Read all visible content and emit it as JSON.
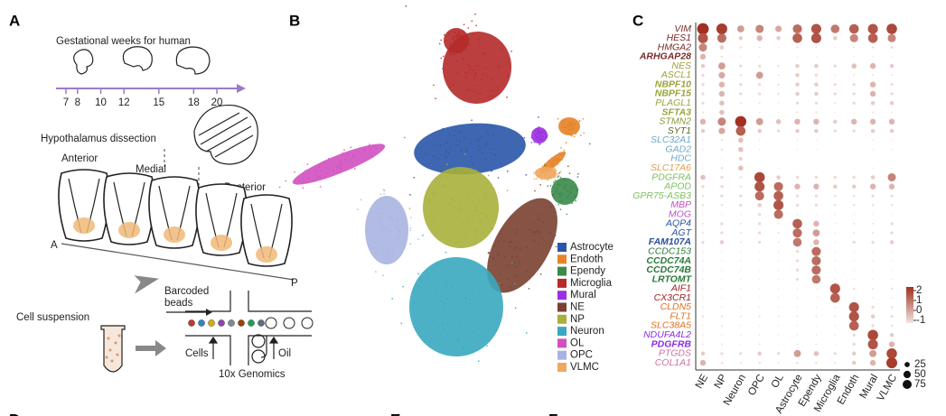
{
  "panels": {
    "a": {
      "label": "A",
      "timeline_title": "Gestational weeks for human",
      "weeks": [
        7,
        8,
        10,
        12,
        15,
        18,
        20
      ],
      "dissection_title": "Hypothalamus dissection",
      "regions": [
        "Anterior",
        "Medial",
        "Posterior"
      ],
      "axis_start": "A",
      "axis_end": "P",
      "beads": [
        "Barcoded",
        "beads"
      ],
      "suspension": "Cell suspension",
      "cells": "Cells",
      "oil": "Oil",
      "platform": "10x Genomics"
    },
    "b": {
      "label": "B",
      "clusters": [
        {
          "name": "Astrocyte",
          "color": "#2a56a8"
        },
        {
          "name": "Endoth",
          "color": "#e6832a"
        },
        {
          "name": "Ependy",
          "color": "#3a8a4a"
        },
        {
          "name": "Microglia",
          "color": "#b52a2a"
        },
        {
          "name": "Mural",
          "color": "#9a30e0"
        },
        {
          "name": "NE",
          "color": "#7a4030"
        },
        {
          "name": "NP",
          "color": "#a8b03a"
        },
        {
          "name": "Neuron",
          "color": "#3aa8c0"
        },
        {
          "name": "OL",
          "color": "#d050c0"
        },
        {
          "name": "OPC",
          "color": "#a8b4e0"
        },
        {
          "name": "VLMC",
          "color": "#f0a860"
        }
      ]
    },
    "c": {
      "label": "C",
      "cell_types": [
        "NE",
        "NP",
        "Neuron",
        "OPC",
        "OL",
        "Astrocyte",
        "Ependy",
        "Microglia",
        "Endoth",
        "Mural",
        "VLMC"
      ],
      "genes": [
        {
          "name": "VIM",
          "color": "#7a2a2a",
          "bold": false
        },
        {
          "name": "HES1",
          "color": "#7a2a2a",
          "bold": false
        },
        {
          "name": "HMGA2",
          "color": "#7a2a2a",
          "bold": false
        },
        {
          "name": "ARHGAP28",
          "color": "#7a2a2a",
          "bold": true
        },
        {
          "name": "NES",
          "color": "#9aa43a",
          "bold": false
        },
        {
          "name": "ASCL1",
          "color": "#9aa43a",
          "bold": false
        },
        {
          "name": "NBPF10",
          "color": "#9aa43a",
          "bold": true
        },
        {
          "name": "NBPF15",
          "color": "#9aa43a",
          "bold": true
        },
        {
          "name": "PLAGL1",
          "color": "#9aa43a",
          "bold": false
        },
        {
          "name": "SFTA3",
          "color": "#9aa43a",
          "bold": true
        },
        {
          "name": "STMN2",
          "color": "#8a9a3a",
          "bold": false
        },
        {
          "name": "SYT1",
          "color": "#5a6a2a",
          "bold": false
        },
        {
          "name": "SLC32A1",
          "color": "#6fa8c8",
          "bold": false
        },
        {
          "name": "GAD2",
          "color": "#6fa8c8",
          "bold": false
        },
        {
          "name": "HDC",
          "color": "#6fa8c8",
          "bold": false
        },
        {
          "name": "SLC17A6",
          "color": "#e0a050",
          "bold": false
        },
        {
          "name": "PDGFRA",
          "color": "#7cc060",
          "bold": false
        },
        {
          "name": "APOD",
          "color": "#7cc060",
          "bold": false
        },
        {
          "name": "GPR75-ASB3",
          "color": "#7cc060",
          "bold": false
        },
        {
          "name": "MBP",
          "color": "#c050c0",
          "bold": false
        },
        {
          "name": "MOG",
          "color": "#c050c0",
          "bold": false
        },
        {
          "name": "AQP4",
          "color": "#2a50a0",
          "bold": false
        },
        {
          "name": "AGT",
          "color": "#2a50a0",
          "bold": false
        },
        {
          "name": "FAM107A",
          "color": "#2a50a0",
          "bold": true
        },
        {
          "name": "CCDC153",
          "color": "#2a7a3a",
          "bold": false
        },
        {
          "name": "CCDC74A",
          "color": "#2a7a3a",
          "bold": true
        },
        {
          "name": "CCDC74B",
          "color": "#2a7a3a",
          "bold": true
        },
        {
          "name": "LRTOMT",
          "color": "#2a7a3a",
          "bold": true
        },
        {
          "name": "AIF1",
          "color": "#a02020",
          "bold": false
        },
        {
          "name": "CX3CR1",
          "color": "#a02020",
          "bold": false
        },
        {
          "name": "CLDN5",
          "color": "#e07020",
          "bold": false
        },
        {
          "name": "FLT1",
          "color": "#e07020",
          "bold": false
        },
        {
          "name": "SLC38A5",
          "color": "#e07020",
          "bold": false
        },
        {
          "name": "NDUFA4L2",
          "color": "#8a2be2",
          "bold": false
        },
        {
          "name": "PDGFRB",
          "color": "#8a2be2",
          "bold": true
        },
        {
          "name": "PTGDS",
          "color": "#d070a0",
          "bold": false
        },
        {
          "name": "COL1A1",
          "color": "#d070a0",
          "bold": false
        }
      ],
      "pct": [
        [
          80,
          70,
          30,
          40,
          25,
          50,
          60,
          45,
          55,
          60,
          65
        ],
        [
          60,
          50,
          10,
          20,
          10,
          55,
          60,
          10,
          40,
          55,
          40
        ],
        [
          40,
          10,
          3,
          2,
          1,
          3,
          2,
          1,
          2,
          3,
          4
        ],
        [
          20,
          3,
          1,
          1,
          0,
          1,
          1,
          0,
          1,
          1,
          1
        ],
        [
          10,
          30,
          5,
          5,
          3,
          10,
          10,
          5,
          15,
          20,
          10
        ],
        [
          5,
          25,
          3,
          30,
          2,
          10,
          5,
          1,
          2,
          2,
          2
        ],
        [
          5,
          20,
          5,
          5,
          3,
          10,
          10,
          5,
          5,
          20,
          5
        ],
        [
          5,
          20,
          5,
          5,
          3,
          10,
          10,
          5,
          5,
          20,
          5
        ],
        [
          5,
          15,
          2,
          2,
          1,
          5,
          5,
          2,
          5,
          10,
          10
        ],
        [
          2,
          15,
          1,
          1,
          1,
          2,
          2,
          1,
          1,
          2,
          2
        ],
        [
          20,
          40,
          75,
          30,
          15,
          20,
          20,
          10,
          20,
          20,
          20
        ],
        [
          10,
          25,
          55,
          10,
          5,
          10,
          10,
          5,
          5,
          10,
          10
        ],
        [
          1,
          3,
          15,
          1,
          0,
          1,
          1,
          0,
          0,
          1,
          1
        ],
        [
          1,
          3,
          15,
          1,
          0,
          1,
          1,
          0,
          0,
          1,
          1
        ],
        [
          0,
          1,
          8,
          0,
          0,
          0,
          0,
          0,
          0,
          0,
          0
        ],
        [
          1,
          3,
          15,
          1,
          1,
          1,
          1,
          0,
          1,
          1,
          1
        ],
        [
          15,
          5,
          3,
          65,
          10,
          5,
          5,
          5,
          5,
          10,
          40
        ],
        [
          5,
          5,
          3,
          60,
          50,
          20,
          20,
          10,
          10,
          20,
          20
        ],
        [
          3,
          5,
          5,
          50,
          55,
          5,
          5,
          3,
          3,
          5,
          5
        ],
        [
          3,
          3,
          5,
          10,
          60,
          5,
          5,
          3,
          3,
          3,
          3
        ],
        [
          1,
          1,
          1,
          5,
          50,
          1,
          1,
          1,
          1,
          1,
          1
        ],
        [
          2,
          5,
          2,
          5,
          2,
          55,
          20,
          1,
          2,
          2,
          5
        ],
        [
          2,
          5,
          2,
          5,
          2,
          50,
          30,
          1,
          2,
          2,
          5
        ],
        [
          5,
          10,
          2,
          5,
          2,
          45,
          20,
          1,
          5,
          5,
          10
        ],
        [
          1,
          1,
          1,
          1,
          1,
          5,
          50,
          1,
          1,
          1,
          1
        ],
        [
          1,
          1,
          1,
          1,
          1,
          5,
          50,
          1,
          1,
          1,
          1
        ],
        [
          1,
          1,
          1,
          1,
          1,
          5,
          50,
          1,
          1,
          1,
          1
        ],
        [
          1,
          1,
          1,
          1,
          1,
          5,
          45,
          1,
          1,
          1,
          1
        ],
        [
          1,
          1,
          1,
          1,
          1,
          1,
          1,
          60,
          3,
          2,
          3
        ],
        [
          1,
          1,
          1,
          1,
          1,
          1,
          1,
          55,
          1,
          1,
          1
        ],
        [
          1,
          1,
          1,
          1,
          1,
          1,
          1,
          1,
          60,
          5,
          3
        ],
        [
          3,
          3,
          2,
          2,
          2,
          2,
          2,
          2,
          60,
          10,
          5
        ],
        [
          1,
          2,
          1,
          1,
          1,
          1,
          1,
          1,
          55,
          5,
          3
        ],
        [
          1,
          1,
          1,
          1,
          1,
          1,
          1,
          1,
          5,
          65,
          10
        ],
        [
          2,
          2,
          1,
          2,
          1,
          2,
          2,
          1,
          5,
          60,
          20
        ],
        [
          10,
          5,
          5,
          10,
          5,
          30,
          15,
          5,
          10,
          30,
          65
        ],
        [
          20,
          3,
          2,
          3,
          2,
          3,
          3,
          2,
          10,
          20,
          70
        ]
      ],
      "color_ticks": [
        2,
        1,
        0,
        -1
      ],
      "size_ticks": [
        25,
        50,
        75
      ]
    },
    "lower_labels": [
      "D",
      "E",
      "F"
    ]
  }
}
